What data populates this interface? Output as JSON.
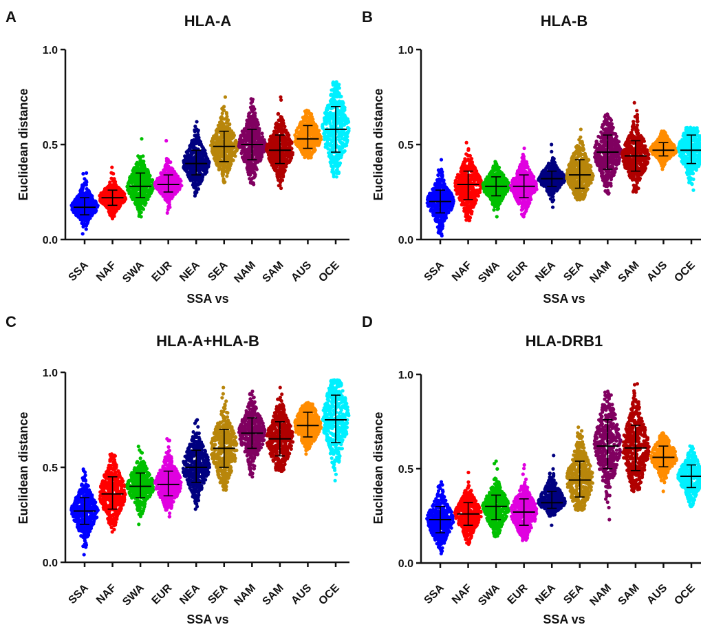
{
  "figure": {
    "categories": [
      "SSA",
      "NAF",
      "SWA",
      "EUR",
      "NEA",
      "SEA",
      "NAM",
      "SAM",
      "AUS",
      "OCE"
    ],
    "category_colors": {
      "SSA": "#0000ff",
      "NAF": "#ff0000",
      "SWA": "#00c000",
      "EUR": "#e000e0",
      "NEA": "#000080",
      "SEA": "#b8860b",
      "NAM": "#800060",
      "SAM": "#b00000",
      "AUS": "#ff8c00",
      "OCE": "#00f0ff"
    }
  },
  "chart_data": [
    {
      "panel": "A",
      "type": "scatter",
      "title": "HLA-A",
      "xlabel": "SSA vs",
      "ylabel": "Euclidean distance",
      "ylim": [
        0.0,
        1.0
      ],
      "yticks": [
        "0.0",
        "0.5",
        "1.0"
      ],
      "categories": [
        "SSA",
        "NAF",
        "SWA",
        "EUR",
        "NEA",
        "SEA",
        "NAM",
        "SAM",
        "AUS",
        "OCE"
      ],
      "mean": [
        0.17,
        0.22,
        0.28,
        0.29,
        0.4,
        0.49,
        0.5,
        0.47,
        0.53,
        0.58
      ],
      "sd_low": [
        0.13,
        0.18,
        0.22,
        0.25,
        0.34,
        0.41,
        0.42,
        0.4,
        0.48,
        0.46
      ],
      "sd_high": [
        0.22,
        0.26,
        0.35,
        0.34,
        0.47,
        0.57,
        0.58,
        0.55,
        0.6,
        0.7
      ],
      "min": [
        0.03,
        0.11,
        0.12,
        0.14,
        0.23,
        0.3,
        0.29,
        0.27,
        0.43,
        0.33
      ],
      "max": [
        0.35,
        0.38,
        0.53,
        0.52,
        0.62,
        0.75,
        0.74,
        0.75,
        0.68,
        0.83
      ]
    },
    {
      "panel": "B",
      "type": "scatter",
      "title": "HLA-B",
      "xlabel": "SSA vs",
      "ylabel": "Euclidean distance",
      "ylim": [
        0.0,
        1.0
      ],
      "yticks": [
        "0.0",
        "0.5",
        "1.0"
      ],
      "categories": [
        "SSA",
        "NAF",
        "SWA",
        "EUR",
        "NEA",
        "SEA",
        "NAM",
        "SAM",
        "AUS",
        "OCE"
      ],
      "mean": [
        0.2,
        0.29,
        0.28,
        0.28,
        0.32,
        0.34,
        0.46,
        0.44,
        0.47,
        0.47
      ],
      "sd_low": [
        0.14,
        0.21,
        0.23,
        0.22,
        0.28,
        0.27,
        0.37,
        0.36,
        0.44,
        0.4
      ],
      "sd_high": [
        0.26,
        0.36,
        0.33,
        0.34,
        0.36,
        0.42,
        0.55,
        0.52,
        0.51,
        0.55
      ],
      "min": [
        0.02,
        0.1,
        0.12,
        0.12,
        0.17,
        0.21,
        0.24,
        0.25,
        0.37,
        0.26
      ],
      "max": [
        0.42,
        0.51,
        0.41,
        0.48,
        0.5,
        0.58,
        0.66,
        0.72,
        0.57,
        0.59
      ]
    },
    {
      "panel": "C",
      "type": "scatter",
      "title": "HLA-A+HLA-B",
      "xlabel": "SSA vs",
      "ylabel": "Euclidean distance",
      "ylim": [
        0.0,
        1.0
      ],
      "yticks": [
        "0.0",
        "0.5",
        "1.0"
      ],
      "categories": [
        "SSA",
        "NAF",
        "SWA",
        "EUR",
        "NEA",
        "SEA",
        "NAM",
        "SAM",
        "AUS",
        "OCE"
      ],
      "mean": [
        0.27,
        0.36,
        0.4,
        0.41,
        0.5,
        0.6,
        0.68,
        0.65,
        0.72,
        0.75
      ],
      "sd_low": [
        0.2,
        0.28,
        0.34,
        0.35,
        0.42,
        0.5,
        0.6,
        0.56,
        0.66,
        0.63
      ],
      "sd_high": [
        0.34,
        0.45,
        0.47,
        0.48,
        0.59,
        0.7,
        0.76,
        0.74,
        0.79,
        0.88
      ],
      "min": [
        0.04,
        0.16,
        0.2,
        0.24,
        0.28,
        0.38,
        0.45,
        0.48,
        0.57,
        0.43
      ],
      "max": [
        0.49,
        0.57,
        0.61,
        0.65,
        0.75,
        0.92,
        0.9,
        0.92,
        0.84,
        0.96
      ]
    },
    {
      "panel": "D",
      "type": "scatter",
      "title": "HLA-DRB1",
      "xlabel": "SSA vs",
      "ylabel": "Euclidean distance",
      "ylim": [
        0.0,
        1.0
      ],
      "yticks": [
        "0.0",
        "0.5",
        "1.0"
      ],
      "categories": [
        "SSA",
        "NAF",
        "SWA",
        "EUR",
        "NEA",
        "SEA",
        "NAM",
        "SAM",
        "AUS",
        "OCE"
      ],
      "mean": [
        0.23,
        0.26,
        0.3,
        0.27,
        0.32,
        0.44,
        0.62,
        0.61,
        0.56,
        0.46
      ],
      "sd_low": [
        0.16,
        0.2,
        0.23,
        0.2,
        0.29,
        0.35,
        0.5,
        0.49,
        0.51,
        0.4
      ],
      "sd_high": [
        0.3,
        0.32,
        0.36,
        0.34,
        0.38,
        0.54,
        0.76,
        0.73,
        0.62,
        0.52
      ],
      "min": [
        0.05,
        0.1,
        0.14,
        0.12,
        0.2,
        0.28,
        0.23,
        0.38,
        0.38,
        0.3
      ],
      "max": [
        0.43,
        0.48,
        0.54,
        0.52,
        0.57,
        0.72,
        0.91,
        0.95,
        0.69,
        0.62
      ]
    }
  ]
}
